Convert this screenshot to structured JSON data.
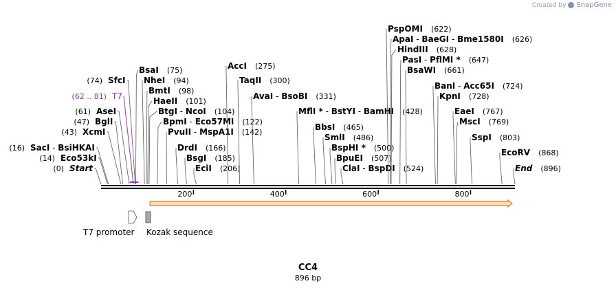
{
  "watermark": {
    "prefix": "Created by",
    "brand": "SnapGene"
  },
  "sequence": {
    "name": "CC4",
    "length_label": "896 bp",
    "length": 896
  },
  "ruler": {
    "ticks": [
      200,
      400,
      600,
      800
    ]
  },
  "enzymes": [
    {
      "name": "SacI",
      "sep": " - ",
      "name2": "BsiHKAI",
      "pos": 16,
      "label": "(16)",
      "side": "left"
    },
    {
      "name": "Eco53kI",
      "pos": 14,
      "label": "(14)",
      "side": "left"
    },
    {
      "name": "Start",
      "pos": 0,
      "label": "(0)",
      "side": "left",
      "italic": true
    },
    {
      "name": "XcmI",
      "pos": 43,
      "label": "(43)",
      "side": "left"
    },
    {
      "name": "BglI",
      "pos": 47,
      "label": "(47)",
      "side": "left"
    },
    {
      "name": "AseI",
      "pos": 61,
      "label": "(61)",
      "side": "left"
    },
    {
      "name": "T7",
      "pos": 70,
      "label": "(62 .. 81)",
      "side": "left",
      "purple": true
    },
    {
      "name": "SfcI",
      "pos": 74,
      "label": "(74)",
      "side": "left"
    },
    {
      "name": "BsaI",
      "pos": 75,
      "label": "(75)",
      "side": "right"
    },
    {
      "name": "NheI",
      "pos": 94,
      "label": "(94)",
      "side": "right"
    },
    {
      "name": "BmtI",
      "pos": 98,
      "label": "(98)",
      "side": "right"
    },
    {
      "name": "HaeII",
      "pos": 101,
      "label": "(101)",
      "side": "right"
    },
    {
      "name": "BtgI",
      "sep": " - ",
      "name2": "NcoI",
      "pos": 104,
      "label": "(104)",
      "side": "right"
    },
    {
      "name": "BpmI",
      "sep": " - ",
      "name2": "Eco57MI",
      "pos": 122,
      "label": "(122)",
      "side": "right"
    },
    {
      "name": "PvuII",
      "sep": " - ",
      "name2": "MspA1I",
      "pos": 142,
      "label": "(142)",
      "side": "right"
    },
    {
      "name": "DrdI",
      "pos": 166,
      "label": "(166)",
      "side": "right"
    },
    {
      "name": "BsgI",
      "pos": 185,
      "label": "(185)",
      "side": "right"
    },
    {
      "name": "EciI",
      "pos": 206,
      "label": "(206)",
      "side": "right"
    },
    {
      "name": "AccI",
      "pos": 275,
      "label": "(275)",
      "side": "right"
    },
    {
      "name": "TaqII",
      "pos": 300,
      "label": "(300)",
      "side": "right"
    },
    {
      "name": "AvaI",
      "sep": " - ",
      "name2": "BsoBI",
      "pos": 331,
      "label": "(331)",
      "side": "right"
    },
    {
      "name": "MflI",
      "star": " *",
      "sep": " - ",
      "name2": "BstYI",
      "sep2": " - ",
      "name3": "BamHI",
      "pos": 428,
      "label": "(428)",
      "side": "right"
    },
    {
      "name": "BbsI",
      "pos": 465,
      "label": "(465)",
      "side": "right"
    },
    {
      "name": "SmlI",
      "pos": 486,
      "label": "(486)",
      "side": "right"
    },
    {
      "name": "BspHI",
      "star": " *",
      "pos": 500,
      "label": "(500)",
      "side": "right"
    },
    {
      "name": "BpuEI",
      "pos": 507,
      "label": "(507)",
      "side": "right"
    },
    {
      "name": "ClaI",
      "sep": " - ",
      "name2": "BspDI",
      "pos": 524,
      "label": "(524)",
      "side": "right"
    },
    {
      "name": "PspOMI",
      "pos": 622,
      "label": "(622)",
      "side": "right"
    },
    {
      "name": "ApaI",
      "sep": " - ",
      "name2": "BaeGI",
      "sep2": " - ",
      "name3": "Bme1580I",
      "pos": 626,
      "label": "(626)",
      "side": "right"
    },
    {
      "name": "HindIII",
      "pos": 628,
      "label": "(628)",
      "side": "right"
    },
    {
      "name": "PasI",
      "sep": " - ",
      "name2": "PflMI",
      "star2": " *",
      "pos": 647,
      "label": "(647)",
      "side": "right"
    },
    {
      "name": "BsaWI",
      "pos": 661,
      "label": "(661)",
      "side": "right"
    },
    {
      "name": "BanI",
      "sep": " - ",
      "name2": "Acc65I",
      "pos": 724,
      "label": "(724)",
      "side": "right"
    },
    {
      "name": "KpnI",
      "pos": 728,
      "label": "(728)",
      "side": "right"
    },
    {
      "name": "EaeI",
      "pos": 767,
      "label": "(767)",
      "side": "right"
    },
    {
      "name": "MscI",
      "pos": 769,
      "label": "(769)",
      "side": "right"
    },
    {
      "name": "SspI",
      "pos": 803,
      "label": "(803)",
      "side": "right"
    },
    {
      "name": "EcoRV",
      "pos": 868,
      "label": "(868)",
      "side": "right"
    },
    {
      "name": "End",
      "pos": 896,
      "label": "(896)",
      "side": "right",
      "italic": true
    }
  ],
  "features": [
    {
      "name": "T7 promoter",
      "kind": "promoter"
    },
    {
      "name": "Kozak sequence",
      "kind": "misc"
    }
  ],
  "orf": {
    "start": 106,
    "end": 896
  },
  "colors": {
    "orf_fill": "#fbdcb6",
    "orf_stroke": "#c8873a",
    "primer": "#9b32c8",
    "kozak": "#a7a9b0",
    "line": "#000000"
  }
}
